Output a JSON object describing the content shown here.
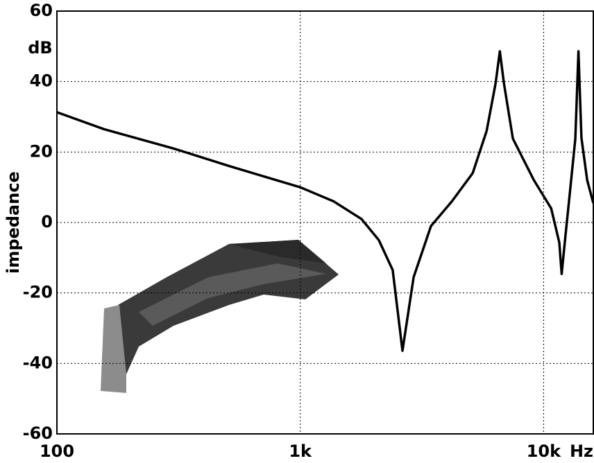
{
  "chart_data": {
    "type": "line",
    "x_unit": "Hz",
    "y_unit": "dB",
    "y_label": "impedance",
    "log_x": true,
    "grid": true,
    "xlim": [
      100,
      16000
    ],
    "ylim": [
      -60,
      60
    ],
    "xticks": [
      100,
      {
        "value": 1000,
        "label": "1k"
      },
      {
        "value": 10000,
        "label": "10k"
      }
    ],
    "yticks": [
      -60,
      -40,
      -20,
      0,
      20,
      40,
      60
    ],
    "x": [
      100,
      156,
      302,
      512,
      1000,
      1371,
      1783,
      2103,
      2398,
      2630,
      2924,
      3445,
      4198,
      5113,
      5833,
      6350,
      6606,
      6870,
      7475,
      9120,
      10740,
      11600,
      11860,
      12300,
      12800,
      13500,
      13900,
      14300,
      15100,
      16000
    ],
    "series": [
      {
        "color": "#000000",
        "values": [
          31.3,
          26.5,
          21,
          16,
          10,
          6,
          1,
          -5,
          -13.5,
          -36.4,
          -15.5,
          -1,
          6,
          14,
          26,
          39.5,
          48.6,
          39.5,
          23.8,
          12,
          4,
          -5.7,
          -14.6,
          -3.7,
          8,
          23.8,
          48.6,
          24,
          12,
          5.5
        ]
      }
    ]
  }
}
